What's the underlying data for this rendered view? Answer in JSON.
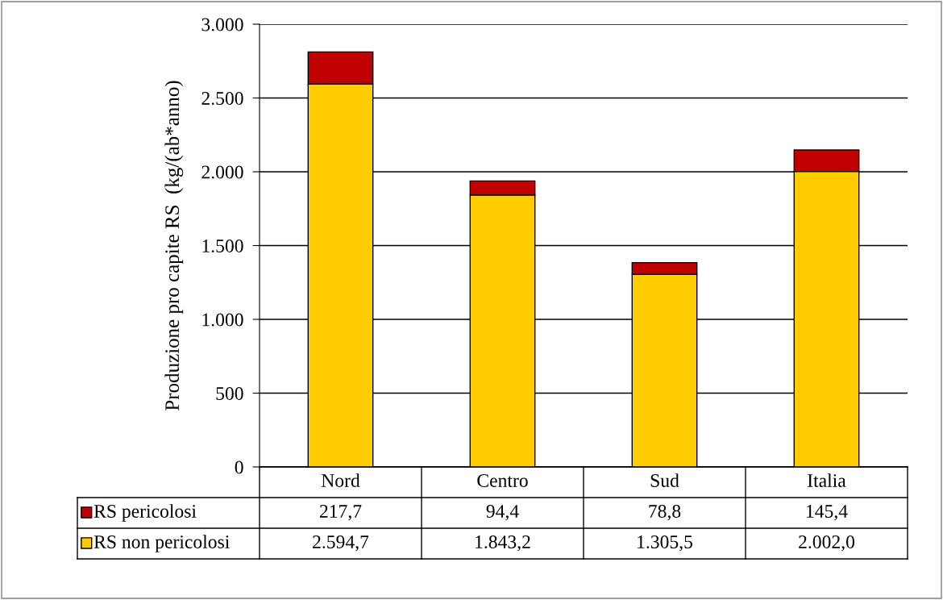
{
  "chart_data": {
    "type": "bar",
    "stacked": true,
    "ylabel": "Produzione pro capite RS  (kg/(ab*anno)",
    "categories": [
      "Nord",
      "Centro",
      "Sud",
      "Italia"
    ],
    "series": [
      {
        "name": "RS non pericolosi",
        "color": "#ffcc00",
        "values": [
          2594.7,
          1843.2,
          1305.5,
          2002.0
        ],
        "value_labels": [
          "2.594,7",
          "1.843,2",
          "1.305,5",
          "2.002,0"
        ]
      },
      {
        "name": "RS pericolosi",
        "color": "#c00000",
        "values": [
          217.7,
          94.4,
          78.8,
          145.4
        ],
        "value_labels": [
          "217,7",
          "94,4",
          "78,8",
          "145,4"
        ]
      }
    ],
    "ylim": [
      0,
      3000
    ],
    "yticks": [
      0,
      {
        "value": 500,
        "label": "500"
      },
      {
        "value": 1000,
        "label": "1.000"
      },
      {
        "value": 1500,
        "label": "1.500"
      },
      {
        "value": 2000,
        "label": "2.000"
      },
      {
        "value": 2500,
        "label": "2.500"
      },
      {
        "value": 3000,
        "label": "3.000"
      }
    ],
    "grid": "y",
    "legend": "bottom"
  }
}
